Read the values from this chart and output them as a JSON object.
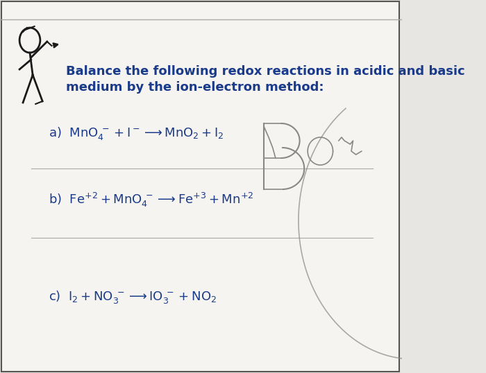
{
  "bg_color": "#e8e6e2",
  "content_bg": "#f5f4f0",
  "text_color": "#1a3a8a",
  "figure_color": "#1a1a1a",
  "scrawl_color": "#888888",
  "title_line1": "Balance the following redox reactions in acidic and basic",
  "title_line2": "medium by the ion-electron method:",
  "title_fontsize": 13.0,
  "reaction_fontsize": 13.0,
  "border_color": "#555555",
  "divider_color": "#aaaaaa"
}
